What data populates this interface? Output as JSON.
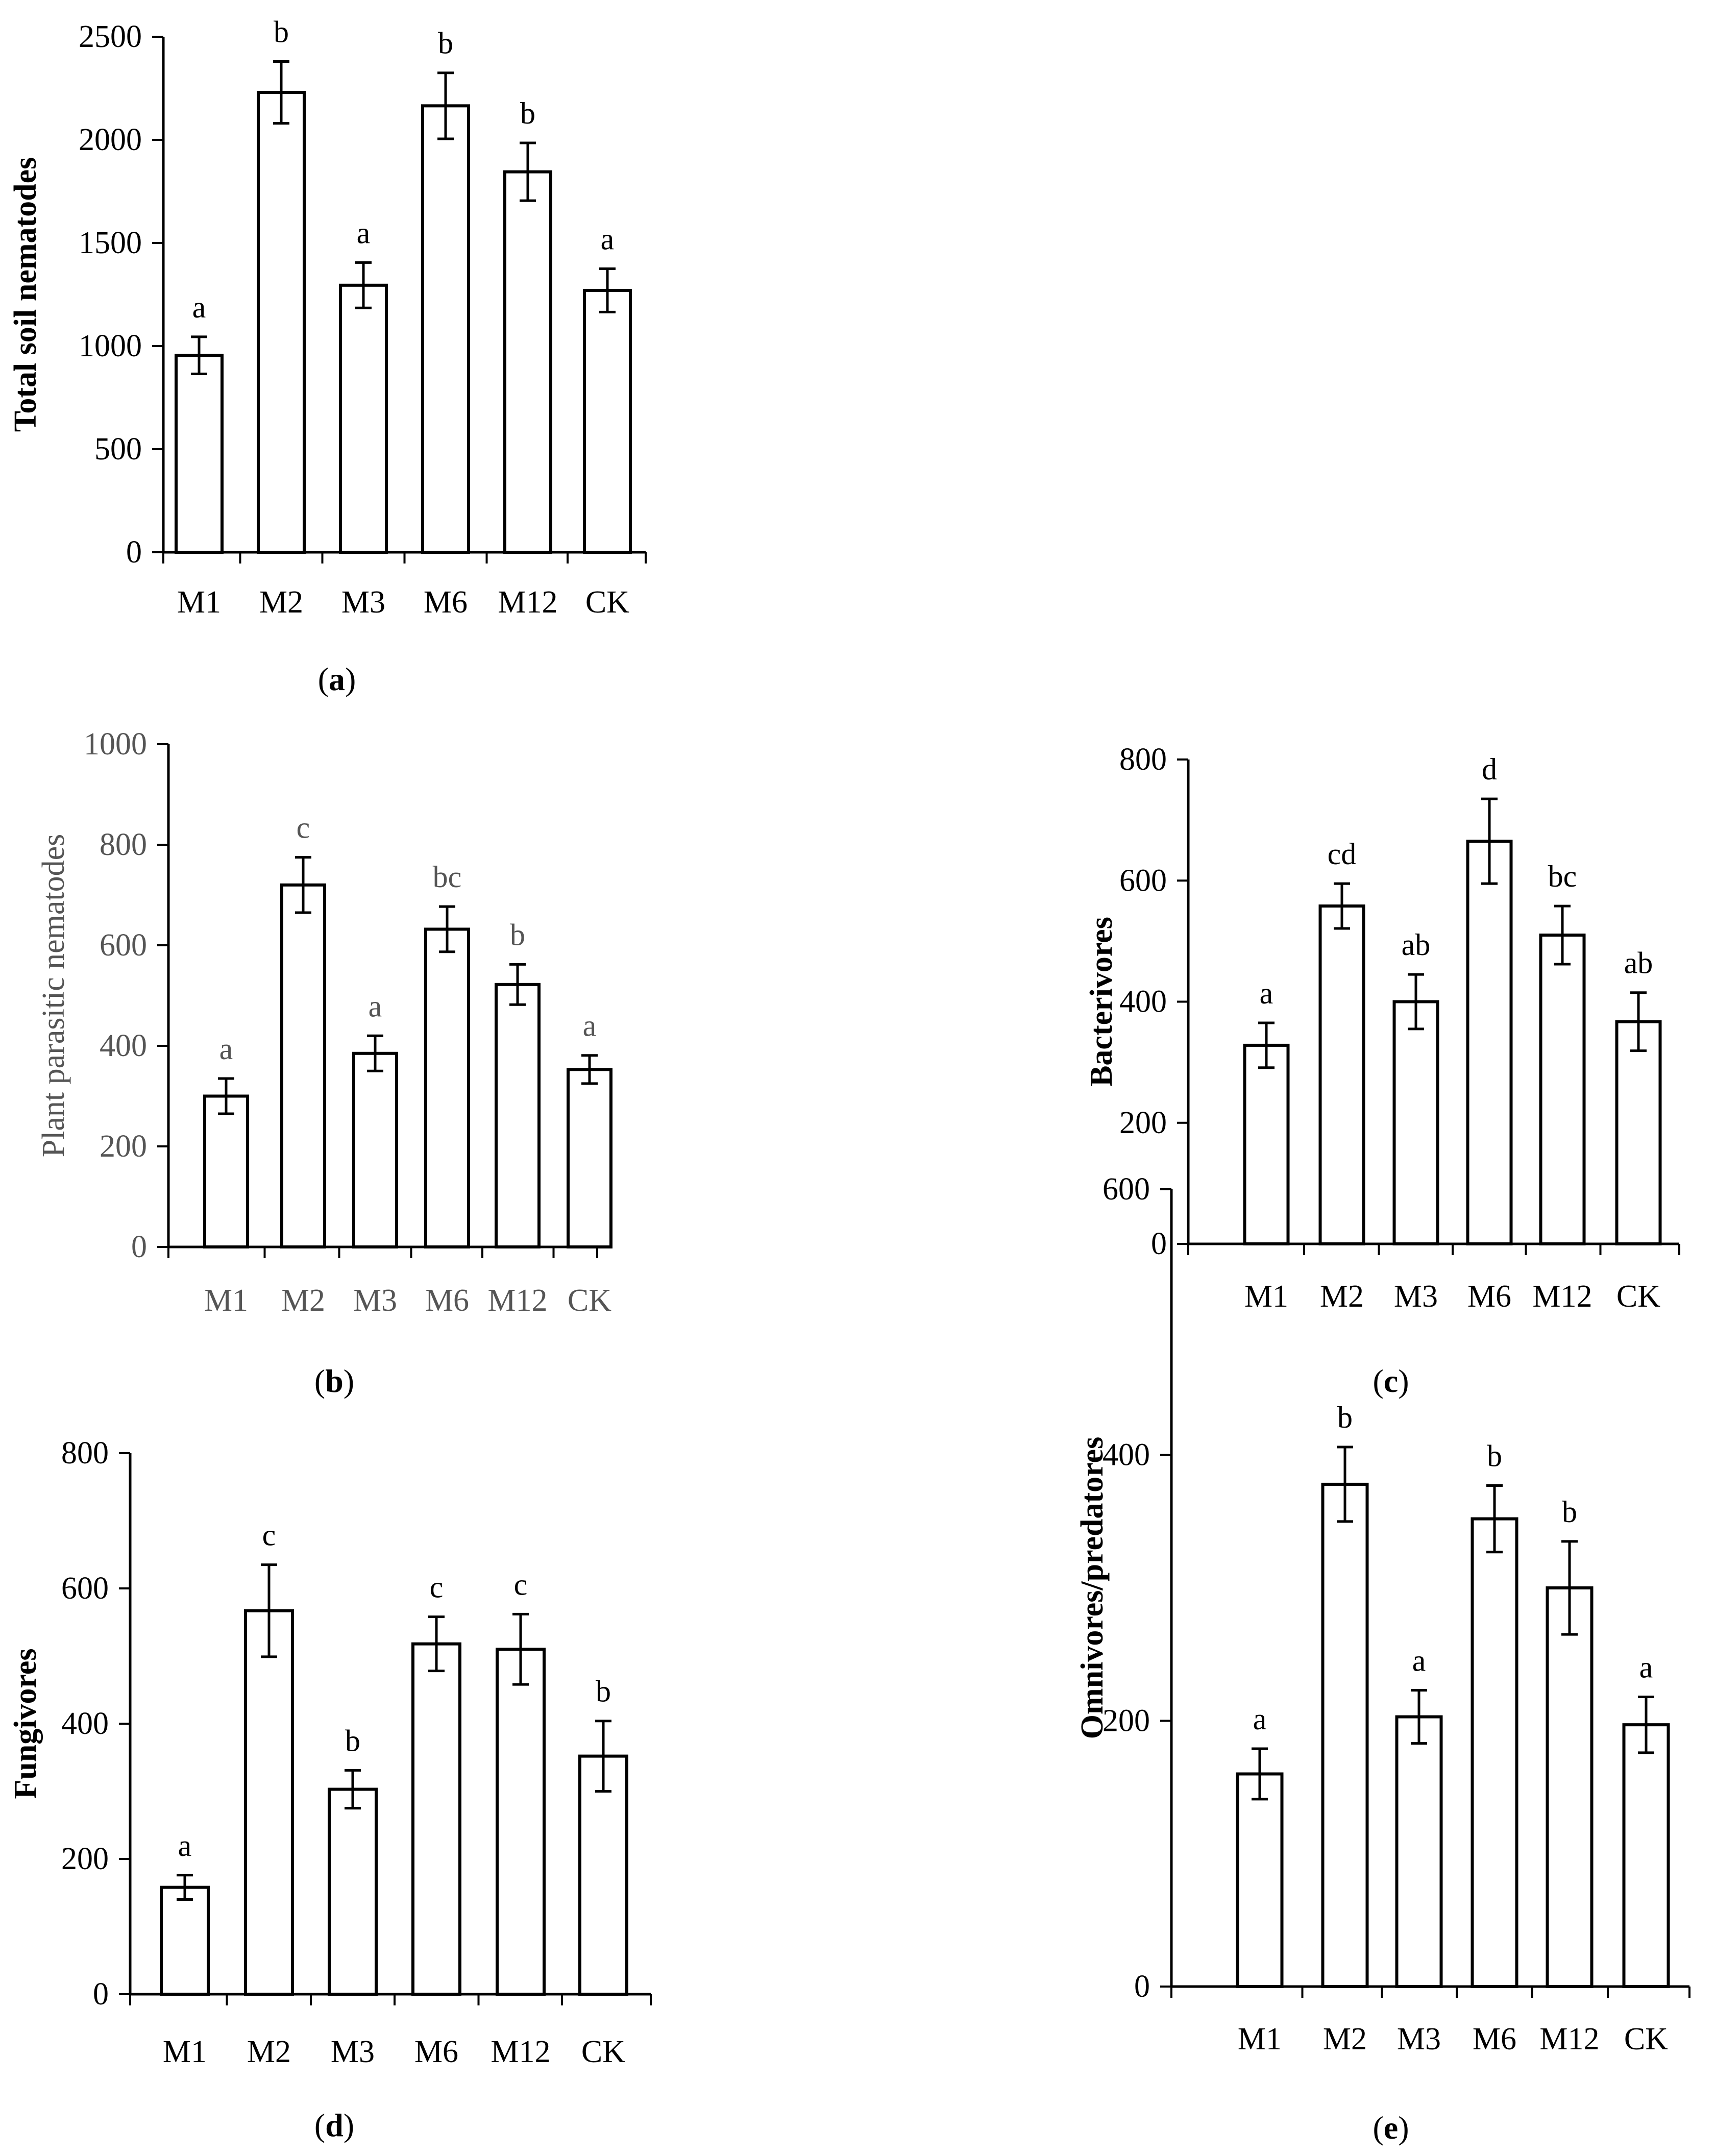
{
  "chart_data": [
    {
      "type": "bar",
      "panel": "a",
      "ylabel": "Total soil nematodes",
      "categories": [
        "M1",
        "M2",
        "M3",
        "M6",
        "M12",
        "CK"
      ],
      "values": [
        955,
        2230,
        1295,
        2165,
        1845,
        1270
      ],
      "errors": [
        90,
        150,
        110,
        160,
        140,
        105
      ],
      "significance": [
        "a",
        "b",
        "a",
        "b",
        "b",
        "a"
      ],
      "ylim": [
        0,
        2500
      ],
      "yticks": [
        0,
        500,
        1000,
        1500,
        2000,
        2500
      ]
    },
    {
      "type": "bar",
      "panel": "b",
      "ylabel": "Plant parasitic nematodes",
      "categories": [
        "M1",
        "M2",
        "M3",
        "M6",
        "M12",
        "CK"
      ],
      "values": [
        300,
        720,
        385,
        632,
        522,
        353
      ],
      "errors": [
        35,
        55,
        35,
        45,
        40,
        28
      ],
      "significance": [
        "a",
        "c",
        "a",
        "bc",
        "b",
        "a"
      ],
      "ylim": [
        0,
        1000
      ],
      "yticks": [
        0,
        200,
        400,
        600,
        800,
        1000
      ]
    },
    {
      "type": "bar",
      "panel": "c",
      "ylabel": "Bacterivores",
      "categories": [
        "M1",
        "M2",
        "M3",
        "M6",
        "M12",
        "CK"
      ],
      "values": [
        328,
        558,
        400,
        665,
        510,
        367
      ],
      "errors": [
        37,
        37,
        45,
        70,
        48,
        48
      ],
      "significance": [
        "a",
        "cd",
        "ab",
        "d",
        "bc",
        "ab"
      ],
      "ylim": [
        0,
        800
      ],
      "yticks": [
        0,
        200,
        400,
        600,
        800
      ]
    },
    {
      "type": "bar",
      "panel": "d",
      "ylabel": "Fungivores",
      "categories": [
        "M1",
        "M2",
        "M3",
        "M6",
        "M12",
        "CK"
      ],
      "values": [
        158,
        567,
        303,
        518,
        510,
        352
      ],
      "errors": [
        18,
        68,
        28,
        40,
        52,
        52
      ],
      "significance": [
        "a",
        "c",
        "b",
        "c",
        "c",
        "b"
      ],
      "ylim": [
        0,
        800
      ],
      "yticks": [
        0,
        200,
        400,
        600,
        800
      ]
    },
    {
      "type": "bar",
      "panel": "e",
      "ylabel": "Omnivores/predatores",
      "categories": [
        "M1",
        "M2",
        "M3",
        "M6",
        "M12",
        "CK"
      ],
      "values": [
        160,
        378,
        203,
        352,
        300,
        197
      ],
      "errors": [
        19,
        28,
        20,
        25,
        35,
        21
      ],
      "significance": [
        "a",
        "b",
        "a",
        "b",
        "b",
        "a"
      ],
      "ylim": [
        0,
        600
      ],
      "yticks": [
        0,
        200,
        400,
        600
      ]
    }
  ],
  "panel_labels": {
    "a": {
      "open": "(",
      "letter": "a",
      "close": ")"
    },
    "b": {
      "open": "(",
      "letter": "b",
      "close": ")"
    },
    "c": {
      "open": "(",
      "letter": "c",
      "close": ")"
    },
    "d": {
      "open": "(",
      "letter": "d",
      "close": ")"
    },
    "e": {
      "open": "(",
      "letter": "e",
      "close": ")"
    }
  }
}
